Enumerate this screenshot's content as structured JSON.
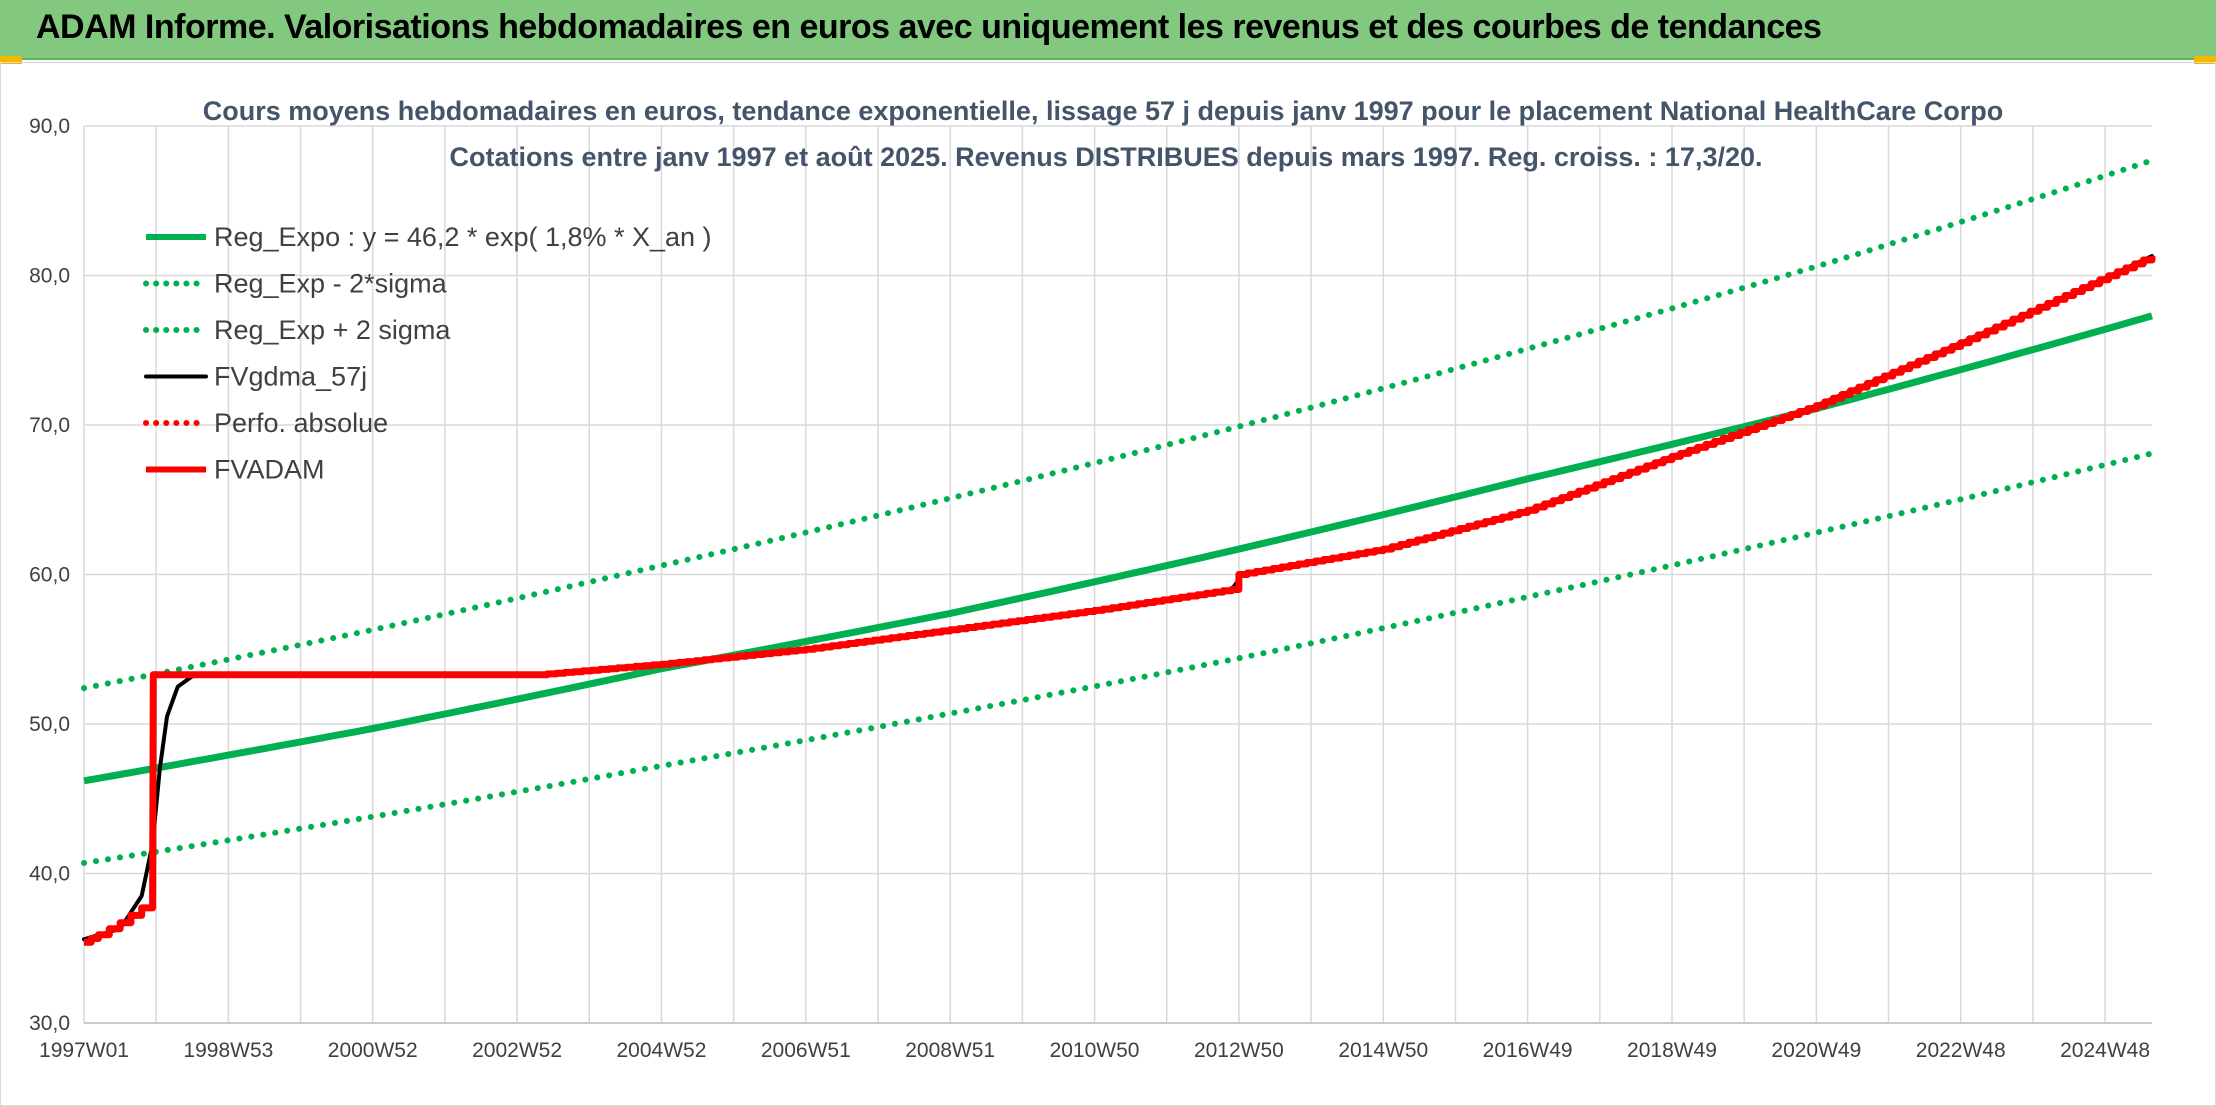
{
  "banner": {
    "title": "ADAM Informe. Valorisations hebdomadaires en euros avec uniquement les revenus et des courbes de tendances"
  },
  "colors": {
    "banner_bg": "#82c97f",
    "reg_green": "#00b050",
    "fv_black": "#000000",
    "adam_red": "#ff0000",
    "grid": "#d9d9d9"
  },
  "chart_data": {
    "type": "line",
    "title": "Cours moyens hebdomadaires en euros, tendance exponentielle, lissage 57 j depuis janv 1997 pour le placement National HealthCare Corpo",
    "subtitle": "Cotations entre janv 1997 et août 2025. Revenus DISTRIBUES depuis mars 1997. Reg. croiss. : 17,3/20.",
    "ylim": [
      30,
      90
    ],
    "y_ticks": [
      "30,0",
      "40,0",
      "50,0",
      "60,0",
      "70,0",
      "80,0",
      "90,0"
    ],
    "x_range": [
      1997.0,
      2025.65
    ],
    "x_ticks": [
      {
        "label": "1997W01",
        "year": 1997.0
      },
      {
        "label": "1998W53",
        "year": 1999.0
      },
      {
        "label": "2000W52",
        "year": 2001.0
      },
      {
        "label": "2002W52",
        "year": 2003.0
      },
      {
        "label": "2004W52",
        "year": 2005.0
      },
      {
        "label": "2006W51",
        "year": 2007.0
      },
      {
        "label": "2008W51",
        "year": 2009.0
      },
      {
        "label": "2010W50",
        "year": 2011.0
      },
      {
        "label": "2012W50",
        "year": 2013.0
      },
      {
        "label": "2014W50",
        "year": 2015.0
      },
      {
        "label": "2016W49",
        "year": 2017.0
      },
      {
        "label": "2018W49",
        "year": 2019.0
      },
      {
        "label": "2020W49",
        "year": 2021.0
      },
      {
        "label": "2022W48",
        "year": 2023.0
      },
      {
        "label": "2024W48",
        "year": 2025.0
      }
    ],
    "grid": true,
    "legend_position": "top-left",
    "series": [
      {
        "name": "Reg_Expo : y = 46,2 * exp( 1,8% *  X_an )",
        "style": "solid-thick",
        "color": "#00b050",
        "x": [
          1997.0,
          2001.0,
          2005.0,
          2009.0,
          2013.0,
          2017.0,
          2021.0,
          2025.65
        ],
        "y": [
          46.2,
          49.7,
          53.7,
          57.4,
          61.7,
          66.4,
          71.1,
          77.3
        ]
      },
      {
        "name": "Reg_Exp - 2*sigma",
        "style": "dotted",
        "color": "#00b050",
        "x": [
          1997.0,
          2001.0,
          2005.0,
          2009.0,
          2013.0,
          2017.0,
          2021.0,
          2025.65
        ],
        "y": [
          40.7,
          43.8,
          47.2,
          50.7,
          54.4,
          58.5,
          62.8,
          68.1
        ]
      },
      {
        "name": "Reg_Exp + 2 sigma",
        "style": "dotted",
        "color": "#00b050",
        "x": [
          1997.0,
          2001.0,
          2005.0,
          2009.0,
          2013.0,
          2017.0,
          2021.0,
          2025.65
        ],
        "y": [
          52.4,
          56.3,
          60.6,
          65.1,
          69.9,
          75.1,
          80.6,
          87.7
        ]
      },
      {
        "name": "FVgdma_57j",
        "style": "solid",
        "color": "#000000",
        "x": [
          1997.0,
          1997.5,
          1997.8,
          1997.95,
          1998.05,
          1998.15,
          1998.3,
          1998.5,
          1998.8,
          2003.3,
          2005.0,
          2007.0,
          2009.0,
          2011.0,
          2012.9,
          2013.05,
          2015.0,
          2017.0,
          2019.0,
          2021.0,
          2023.0,
          2025.65
        ],
        "y": [
          35.6,
          36.3,
          38.5,
          42.0,
          47.0,
          50.5,
          52.5,
          53.2,
          53.3,
          53.3,
          54.0,
          55.0,
          56.3,
          57.6,
          59.0,
          60.0,
          61.7,
          64.3,
          67.9,
          71.3,
          75.5,
          81.3
        ]
      },
      {
        "name": "Perfo. absolue",
        "style": "dotted",
        "color": "#ff0000",
        "x": [],
        "y": []
      },
      {
        "name": "FVADAM",
        "style": "solid-thick-step",
        "color": "#ff0000",
        "x": [
          1997.0,
          1997.2,
          1997.35,
          1997.5,
          1997.65,
          1997.8,
          1997.95,
          1997.96,
          2003.3,
          2005.0,
          2007.0,
          2009.0,
          2011.0,
          2012.9,
          2013.0,
          2015.0,
          2017.0,
          2019.0,
          2021.0,
          2023.0,
          2025.65
        ],
        "y": [
          35.4,
          35.9,
          36.3,
          36.7,
          37.2,
          37.7,
          37.8,
          53.3,
          53.3,
          54.0,
          55.0,
          56.3,
          57.6,
          59.0,
          60.0,
          61.7,
          64.3,
          67.9,
          71.3,
          75.5,
          81.3
        ]
      }
    ]
  }
}
